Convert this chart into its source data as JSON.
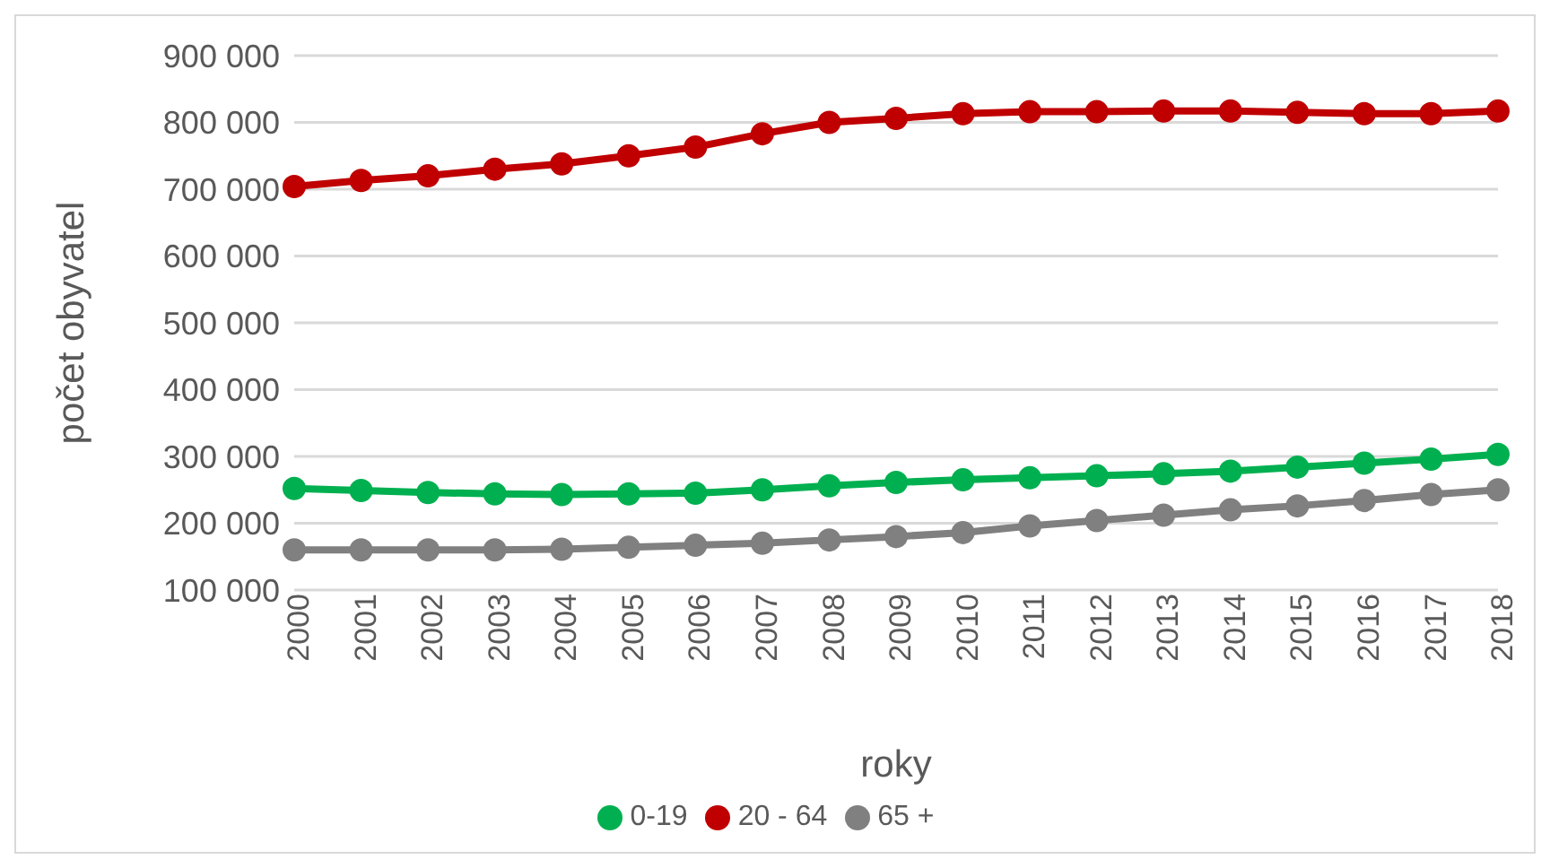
{
  "chart_data": {
    "type": "line",
    "xlabel": "roky",
    "ylabel": "počet obyvatel",
    "categories": [
      "2000",
      "2001",
      "2002",
      "2003",
      "2004",
      "2005",
      "2006",
      "2007",
      "2008",
      "2009",
      "2010",
      "2011",
      "2012",
      "2013",
      "2014",
      "2015",
      "2016",
      "2017",
      "2018"
    ],
    "series": [
      {
        "name": "0-19",
        "color": "#00b050",
        "values": [
          252000,
          249000,
          246000,
          244000,
          243000,
          244000,
          245000,
          250000,
          256000,
          261000,
          265000,
          268000,
          271000,
          274000,
          278000,
          284000,
          290000,
          296000,
          303000
        ]
      },
      {
        "name": "20 - 64",
        "color": "#c00000",
        "values": [
          704000,
          713000,
          720000,
          730000,
          738000,
          750000,
          763000,
          783000,
          800000,
          806000,
          813000,
          816000,
          816000,
          817000,
          817000,
          815000,
          813000,
          813000,
          817000
        ]
      },
      {
        "name": "65 +",
        "color": "#808080",
        "values": [
          160000,
          160000,
          160000,
          160000,
          161000,
          164000,
          167000,
          170000,
          175000,
          180000,
          186000,
          196000,
          204000,
          212000,
          220000,
          226000,
          234000,
          243000,
          250000
        ]
      }
    ],
    "ylim": [
      100000,
      900000
    ],
    "yticks": [
      {
        "value": 100000,
        "label": "100 000"
      },
      {
        "value": 200000,
        "label": "200 000"
      },
      {
        "value": 300000,
        "label": "300 000"
      },
      {
        "value": 400000,
        "label": "400 000"
      },
      {
        "value": 500000,
        "label": "500 000"
      },
      {
        "value": 600000,
        "label": "600 000"
      },
      {
        "value": 700000,
        "label": "700 000"
      },
      {
        "value": 800000,
        "label": "800 000"
      },
      {
        "value": 900000,
        "label": "900 000"
      }
    ],
    "grid": "y",
    "legend": "bottom",
    "marker": "circle",
    "line_style": "solid"
  }
}
